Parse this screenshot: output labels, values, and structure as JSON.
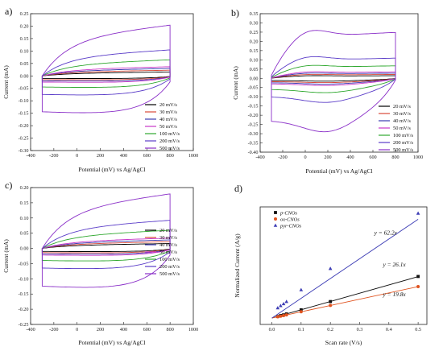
{
  "chart_data": [
    {
      "panel_label": "a)",
      "type": "line",
      "xlabel": "Potential (mV) vs Ag/AgCl",
      "ylabel": "Current (mA)",
      "xlim": [
        -400,
        1000
      ],
      "ylim": [
        -0.3,
        0.25
      ],
      "x_ticks": [
        "-400",
        "-200",
        "0",
        "200",
        "400",
        "600",
        "800",
        "1000"
      ],
      "y_ticks": [
        "0.25",
        "0.20",
        "0.15",
        "0.10",
        "0.05",
        "0.00",
        "-0.05",
        "-0.10",
        "-0.15",
        "-0.20",
        "-0.25",
        "-0.30"
      ],
      "legend_position": "bottom-right",
      "series": [
        {
          "name": "20 mV/s",
          "color": "#000000",
          "amp": 0.01,
          "rise": 0.006,
          "hump": 0.0
        },
        {
          "name": "30 mV/s",
          "color": "#d94a3a",
          "amp": 0.015,
          "rise": 0.008,
          "hump": 0.0
        },
        {
          "name": "40 mV/s",
          "color": "#3b3bb0",
          "amp": 0.02,
          "rise": 0.01,
          "hump": 0.0
        },
        {
          "name": "50 mV/s",
          "color": "#c837c8",
          "amp": 0.025,
          "rise": 0.012,
          "hump": 0.0
        },
        {
          "name": "100 mV/s",
          "color": "#2fa82f",
          "amp": 0.045,
          "rise": 0.02,
          "hump": 0.0
        },
        {
          "name": "200 mV/s",
          "color": "#5a3cc8",
          "amp": 0.075,
          "rise": 0.03,
          "hump": 0.0
        },
        {
          "name": "500 mV/s",
          "color": "#8a2fc8",
          "amp": 0.145,
          "rise": 0.06,
          "hump": 0.0
        }
      ]
    },
    {
      "panel_label": "b)",
      "type": "line",
      "xlabel": "Potential (mV) vs Ag/AgCl",
      "ylabel": "Current (mA)",
      "xlim": [
        -400,
        1000
      ],
      "ylim": [
        -0.4,
        0.35
      ],
      "x_ticks": [
        "-400",
        "-200",
        "0",
        "200",
        "400",
        "600",
        "800",
        "1000"
      ],
      "y_ticks": [
        "0.35",
        "0.30",
        "0.25",
        "0.20",
        "0.15",
        "0.10",
        "0.05",
        "0.00",
        "-0.05",
        "-0.10",
        "-0.15",
        "-0.20",
        "-0.25",
        "-0.30",
        "-0.35",
        "-0.40"
      ],
      "legend_position": "bottom-right",
      "series": [
        {
          "name": "20 mV/s",
          "color": "#000000",
          "amp": 0.012,
          "rise": 0.002,
          "hump": 0.004
        },
        {
          "name": "30 mV/s",
          "color": "#d94a3a",
          "amp": 0.018,
          "rise": 0.003,
          "hump": 0.006
        },
        {
          "name": "40 mV/s",
          "color": "#3b3bb0",
          "amp": 0.024,
          "rise": 0.004,
          "hump": 0.008
        },
        {
          "name": "50 mV/s",
          "color": "#c837c8",
          "amp": 0.03,
          "rise": 0.005,
          "hump": 0.01
        },
        {
          "name": "100 mV/s",
          "color": "#2fa82f",
          "amp": 0.06,
          "rise": 0.008,
          "hump": 0.02
        },
        {
          "name": "200 mV/s",
          "color": "#5a3cc8",
          "amp": 0.1,
          "rise": 0.01,
          "hump": 0.035
        },
        {
          "name": "500 mV/s",
          "color": "#8a2fc8",
          "amp": 0.23,
          "rise": 0.02,
          "hump": 0.07
        }
      ]
    },
    {
      "panel_label": "c)",
      "type": "line",
      "xlabel": "Potential (mV) vs Ag/AgCl",
      "ylabel": "Current (mA)",
      "xlim": [
        -400,
        1000
      ],
      "ylim": [
        -0.25,
        0.2
      ],
      "x_ticks": [
        "-400",
        "-200",
        "0",
        "200",
        "400",
        "600",
        "800",
        "1000"
      ],
      "y_ticks": [
        "0.20",
        "0.15",
        "0.10",
        "0.05",
        "0.00",
        "-0.05",
        "-0.10",
        "-0.15",
        "-0.20",
        "-0.25"
      ],
      "legend_position": "bottom-right",
      "series": [
        {
          "name": "20 mV/s",
          "color": "#000000",
          "amp": 0.01,
          "rise": 0.006,
          "hump": 0.0
        },
        {
          "name": "30 mV/s",
          "color": "#d94a3a",
          "amp": 0.014,
          "rise": 0.008,
          "hump": 0.0
        },
        {
          "name": "40 mV/s",
          "color": "#3b3bb0",
          "amp": 0.018,
          "rise": 0.01,
          "hump": 0.0
        },
        {
          "name": "50 mV/s",
          "color": "#c837c8",
          "amp": 0.022,
          "rise": 0.012,
          "hump": 0.0
        },
        {
          "name": "100 mV/s",
          "color": "#2fa82f",
          "amp": 0.04,
          "rise": 0.02,
          "hump": 0.0
        },
        {
          "name": "200 mV/s",
          "color": "#5a3cc8",
          "amp": 0.065,
          "rise": 0.028,
          "hump": 0.0
        },
        {
          "name": "500 mV/s",
          "color": "#8a2fc8",
          "amp": 0.125,
          "rise": 0.055,
          "hump": 0.0
        }
      ]
    },
    {
      "panel_label": "d)",
      "type": "scatter",
      "xlabel": "Scan rate (V/s)",
      "ylabel": "Normalized Current (A/g)",
      "xlim": [
        -0.04,
        0.53
      ],
      "ylim": [
        -2,
        35
      ],
      "x_ticks": [
        "0.0",
        "0.1",
        "0.2",
        "0.3",
        "0.4",
        "0.5"
      ],
      "legend_position": "top-left",
      "series": [
        {
          "name": "p-CNOs",
          "color": "#111111",
          "marker": "square",
          "slope": 26.1,
          "fit_label": "y = 26.1x",
          "x": [
            0.02,
            0.03,
            0.04,
            0.05,
            0.1,
            0.2,
            0.5
          ],
          "y": [
            0.5,
            0.8,
            1.0,
            1.3,
            2.6,
            5.2,
            13.1
          ]
        },
        {
          "name": "ox-CNOs",
          "color": "#e0531f",
          "marker": "circle",
          "slope": 19.8,
          "fit_label": "y = 19.8x",
          "x": [
            0.02,
            0.03,
            0.04,
            0.05,
            0.1,
            0.2,
            0.5
          ],
          "y": [
            0.4,
            0.6,
            0.8,
            1.0,
            2.0,
            4.0,
            9.9
          ]
        },
        {
          "name": "pyr-CNOs",
          "color": "#3d3db5",
          "marker": "triangle",
          "slope": 62.2,
          "fit_label": "y = 62.2x",
          "x": [
            0.02,
            0.03,
            0.04,
            0.05,
            0.1,
            0.2,
            0.5
          ],
          "y": [
            3.2,
            3.9,
            4.5,
            5.2,
            8.9,
            15.6,
            33.0
          ]
        }
      ]
    }
  ]
}
